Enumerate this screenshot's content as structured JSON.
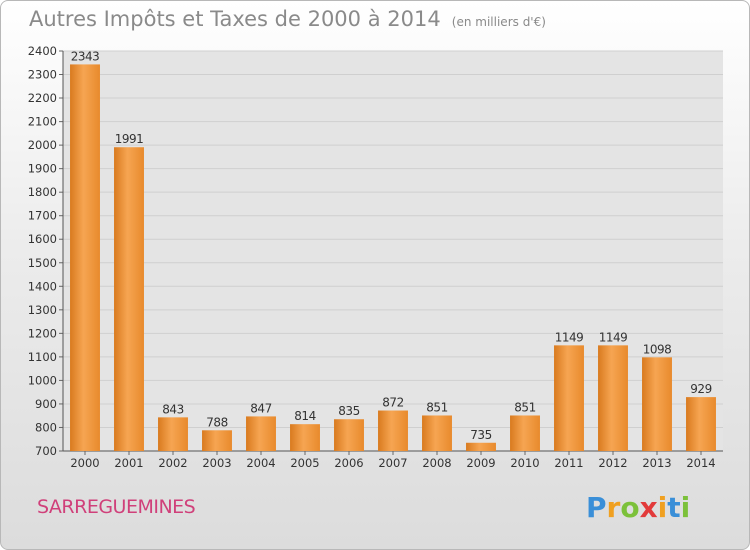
{
  "title": "Autres Impôts et Taxes de 2000 à 2014",
  "unit_note": "(en milliers d'€)",
  "city": "SARREGUEMINES",
  "logo": {
    "letters": [
      "P",
      "r",
      "o",
      "x",
      "i",
      "t",
      "i"
    ],
    "colors": [
      "#3a8fd8",
      "#f0a020",
      "#7cc13a",
      "#e23a3a",
      "#f0a020",
      "#3a8fd8",
      "#7cc13a"
    ]
  },
  "chart_data": {
    "type": "bar",
    "categories": [
      "2000",
      "2001",
      "2002",
      "2003",
      "2004",
      "2005",
      "2006",
      "2007",
      "2008",
      "2009",
      "2010",
      "2011",
      "2012",
      "2013",
      "2014"
    ],
    "values": [
      2343,
      1991,
      843,
      788,
      847,
      814,
      835,
      872,
      851,
      735,
      851,
      1149,
      1149,
      1098,
      929
    ],
    "ylim": [
      700,
      2400
    ],
    "yticks": [
      700,
      800,
      900,
      1000,
      1100,
      1200,
      1300,
      1400,
      1500,
      1600,
      1700,
      1800,
      1900,
      2000,
      2100,
      2200,
      2300,
      2400
    ],
    "grid": true,
    "bar_color": "#f0973a"
  }
}
